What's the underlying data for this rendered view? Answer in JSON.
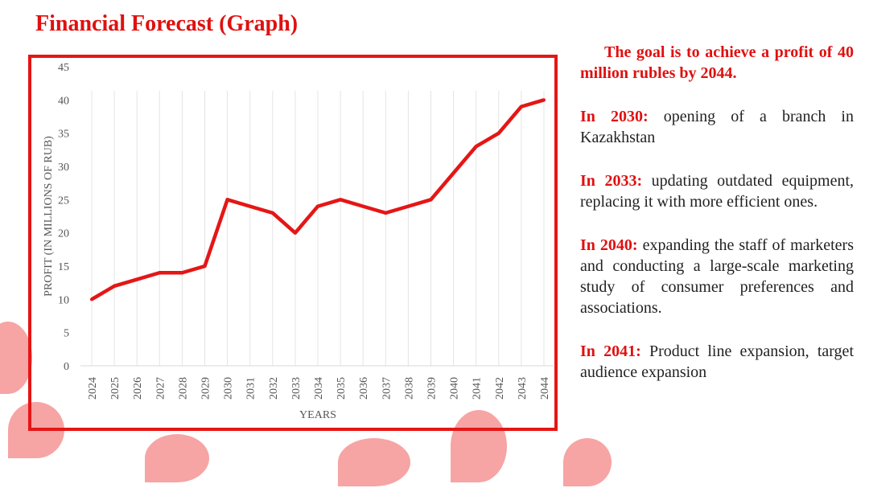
{
  "title": "Financial Forecast (Graph)",
  "notes": {
    "goal": "The goal is to achieve a profit of 40 million rubles by 2044.",
    "items": [
      {
        "year": "In 2030:",
        "text": " opening of a branch in Kazakhstan"
      },
      {
        "year": "In 2033:",
        "text": " updating outdated equipment, replacing it with more efficient ones."
      },
      {
        "year": "In 2040:",
        "text": " expanding the staff of marketers and conducting a large-scale marketing study of consumer preferences and associations."
      },
      {
        "year": "In 2041:",
        "text": " Product line expansion, target audience expansion"
      }
    ]
  },
  "chart_data": {
    "type": "line",
    "title": "",
    "xlabel": "YEARS",
    "ylabel": "PROFIT (IN MILLIONS OF RUB)",
    "ylim": [
      0,
      45
    ],
    "yticks": [
      0,
      5,
      10,
      15,
      20,
      25,
      30,
      35,
      40,
      45
    ],
    "grid": "vertical",
    "x": [
      "2024",
      "2025",
      "2026",
      "2027",
      "2028",
      "2029",
      "2030",
      "2031",
      "2032",
      "2033",
      "2034",
      "2035",
      "2036",
      "2037",
      "2038",
      "2039",
      "2040",
      "2041",
      "2042",
      "2043",
      "2044"
    ],
    "series": [
      {
        "name": "Profit",
        "color": "#e51616",
        "values": [
          10,
          12,
          13,
          14,
          14,
          15,
          25,
          24,
          23,
          20,
          24,
          25,
          24,
          23,
          24,
          25,
          29,
          33,
          35,
          39,
          40
        ]
      }
    ]
  }
}
